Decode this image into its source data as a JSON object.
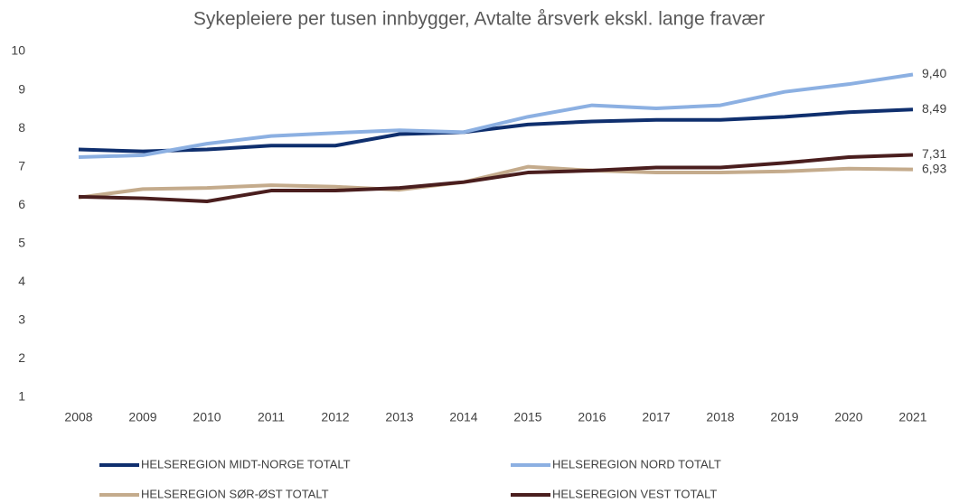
{
  "chart_data": {
    "type": "line",
    "title": "Sykepleiere per tusen innbygger, Avtalte årsverk ekskl. lange fravær",
    "categories": [
      "2008",
      "2009",
      "2010",
      "2011",
      "2012",
      "2013",
      "2014",
      "2015",
      "2016",
      "2017",
      "2018",
      "2019",
      "2020",
      "2021"
    ],
    "series": [
      {
        "name": "HELSEREGION MIDT-NORGE TOTALT",
        "color": "#0f2f6e",
        "values": [
          7.45,
          7.4,
          7.45,
          7.55,
          7.55,
          7.85,
          7.9,
          8.1,
          8.18,
          8.22,
          8.22,
          8.3,
          8.42,
          8.49
        ],
        "value_labels": [
          null,
          null,
          null,
          null,
          null,
          null,
          null,
          null,
          null,
          null,
          null,
          null,
          null,
          "8,49"
        ]
      },
      {
        "name": "HELSEREGION NORD TOTALT",
        "color": "#8cb0e2",
        "values": [
          7.25,
          7.3,
          7.6,
          7.8,
          7.88,
          7.95,
          7.9,
          8.3,
          8.6,
          8.52,
          8.6,
          8.95,
          9.15,
          9.4
        ],
        "value_labels": [
          null,
          null,
          null,
          null,
          null,
          null,
          null,
          null,
          null,
          null,
          null,
          null,
          null,
          "9,40"
        ]
      },
      {
        "name": "HELSEREGION SØR-ØST TOTALT",
        "color": "#c4ab8c",
        "values": [
          6.2,
          6.42,
          6.45,
          6.52,
          6.48,
          6.4,
          6.6,
          7.0,
          6.9,
          6.85,
          6.85,
          6.88,
          6.95,
          6.93
        ],
        "value_labels": [
          null,
          null,
          null,
          null,
          null,
          null,
          null,
          null,
          null,
          null,
          null,
          null,
          null,
          "6,93"
        ]
      },
      {
        "name": "HELSEREGION VEST TOTALT",
        "color": "#4a1e1e",
        "values": [
          6.22,
          6.18,
          6.1,
          6.38,
          6.38,
          6.45,
          6.6,
          6.85,
          6.9,
          6.98,
          6.98,
          7.1,
          7.25,
          7.31
        ],
        "value_labels": [
          null,
          null,
          null,
          null,
          null,
          null,
          null,
          null,
          null,
          null,
          null,
          null,
          null,
          "7,31"
        ]
      }
    ],
    "ylim": [
      1,
      10
    ],
    "yticks": [
      1,
      2,
      3,
      4,
      5,
      6,
      7,
      8,
      9,
      10
    ],
    "grid": false,
    "legend": "bottom"
  }
}
